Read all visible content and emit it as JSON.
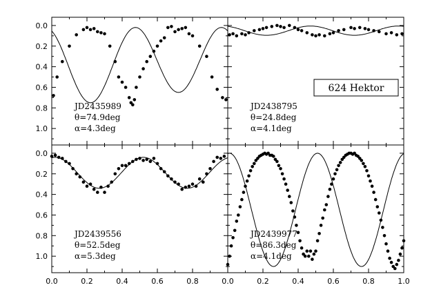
{
  "figure": {
    "object_label": "624 Hektor",
    "x_tick_labels": [
      "0.0",
      "0.2",
      "0.4",
      "0.6",
      "0.8",
      "0.0",
      "0.2",
      "0.4",
      "0.6",
      "0.8",
      "1.0"
    ],
    "y_tick_labels": [
      "0.0",
      "0.2",
      "0.4",
      "0.6",
      "0.8",
      "1.0"
    ]
  },
  "chart_data": [
    {
      "type": "scatter",
      "panel": "top-left",
      "jd": "JD2435989",
      "theta": "θ=74.9deg",
      "alpha": "α=4.3deg",
      "xlim": [
        0,
        1
      ],
      "ylim": [
        1.16,
        -0.08
      ],
      "y_inverted": true,
      "x": [
        0.01,
        0.03,
        0.06,
        0.1,
        0.14,
        0.18,
        0.2,
        0.22,
        0.24,
        0.26,
        0.28,
        0.3,
        0.33,
        0.36,
        0.38,
        0.4,
        0.42,
        0.44,
        0.45,
        0.46,
        0.47,
        0.48,
        0.5,
        0.52,
        0.54,
        0.56,
        0.58,
        0.6,
        0.62,
        0.64,
        0.66,
        0.68,
        0.7,
        0.72,
        0.74,
        0.76,
        0.78,
        0.8,
        0.84,
        0.88,
        0.91,
        0.94,
        0.97,
        0.99
      ],
      "y": [
        0.68,
        0.5,
        0.35,
        0.2,
        0.09,
        0.04,
        0.02,
        0.04,
        0.03,
        0.06,
        0.07,
        0.08,
        0.2,
        0.35,
        0.5,
        0.55,
        0.6,
        0.7,
        0.75,
        0.77,
        0.72,
        0.6,
        0.5,
        0.42,
        0.35,
        0.3,
        0.25,
        0.2,
        0.15,
        0.12,
        0.02,
        0.01,
        0.06,
        0.04,
        0.03,
        0.02,
        0.08,
        0.1,
        0.2,
        0.3,
        0.5,
        0.62,
        0.7,
        0.72
      ],
      "curve": {
        "mean": 0.36,
        "a1": 0.34,
        "a2": 0.05,
        "shift": -0.22
      }
    },
    {
      "type": "scatter",
      "panel": "top-right",
      "jd": "JD2438795",
      "theta": "θ=24.8deg",
      "alpha": "α=4.1deg",
      "xlim": [
        0,
        1
      ],
      "ylim": [
        1.16,
        -0.08
      ],
      "y_inverted": true,
      "x": [
        0.01,
        0.03,
        0.05,
        0.08,
        0.1,
        0.12,
        0.15,
        0.18,
        0.2,
        0.22,
        0.25,
        0.28,
        0.3,
        0.32,
        0.35,
        0.38,
        0.4,
        0.42,
        0.45,
        0.48,
        0.5,
        0.52,
        0.55,
        0.58,
        0.6,
        0.63,
        0.66,
        0.7,
        0.72,
        0.75,
        0.78,
        0.8,
        0.83,
        0.86,
        0.9,
        0.93,
        0.96,
        0.99
      ],
      "y": [
        0.09,
        0.08,
        0.1,
        0.08,
        0.09,
        0.07,
        0.05,
        0.04,
        0.03,
        0.02,
        0.01,
        0.0,
        0.01,
        0.02,
        0.0,
        0.02,
        0.04,
        0.05,
        0.07,
        0.09,
        0.1,
        0.09,
        0.1,
        0.08,
        0.07,
        0.05,
        0.04,
        0.02,
        0.03,
        0.02,
        0.03,
        0.04,
        0.05,
        0.06,
        0.08,
        0.07,
        0.09,
        0.08
      ],
      "curve": {
        "mean": 0.05,
        "a1": 0.045,
        "a2": 0.0,
        "shift": -0.22
      }
    },
    {
      "type": "scatter",
      "panel": "bottom-left",
      "jd": "JD2439556",
      "theta": "θ=52.5deg",
      "alpha": "α=5.3deg",
      "xlim": [
        0,
        1
      ],
      "ylim": [
        1.16,
        -0.08
      ],
      "y_inverted": true,
      "x": [
        0.0,
        0.02,
        0.04,
        0.06,
        0.08,
        0.1,
        0.12,
        0.14,
        0.16,
        0.18,
        0.2,
        0.22,
        0.24,
        0.26,
        0.28,
        0.3,
        0.32,
        0.34,
        0.36,
        0.38,
        0.4,
        0.42,
        0.44,
        0.46,
        0.48,
        0.5,
        0.52,
        0.54,
        0.56,
        0.58,
        0.6,
        0.62,
        0.64,
        0.66,
        0.68,
        0.7,
        0.72,
        0.74,
        0.76,
        0.78,
        0.8,
        0.82,
        0.84,
        0.86,
        0.88,
        0.9,
        0.92,
        0.94,
        0.96,
        0.98
      ],
      "y": [
        0.03,
        0.02,
        0.04,
        0.05,
        0.08,
        0.1,
        0.15,
        0.2,
        0.23,
        0.28,
        0.32,
        0.3,
        0.35,
        0.38,
        0.33,
        0.38,
        0.32,
        0.28,
        0.2,
        0.15,
        0.12,
        0.12,
        0.1,
        0.08,
        0.06,
        0.05,
        0.07,
        0.06,
        0.08,
        0.05,
        0.1,
        0.15,
        0.18,
        0.22,
        0.25,
        0.28,
        0.3,
        0.35,
        0.33,
        0.32,
        0.3,
        0.32,
        0.25,
        0.28,
        0.2,
        0.15,
        0.08,
        0.04,
        0.05,
        0.03
      ],
      "curve": {
        "mean": 0.19,
        "a1": 0.15,
        "a2": 0.0,
        "shift": -0.27
      }
    },
    {
      "type": "scatter",
      "panel": "bottom-right",
      "jd": "JD2439977",
      "theta": "θ=86.3deg",
      "alpha": "α=4.1deg",
      "xlim": [
        0,
        1
      ],
      "ylim": [
        1.16,
        -0.08
      ],
      "y_inverted": true,
      "x": [
        0.0,
        0.01,
        0.02,
        0.03,
        0.04,
        0.05,
        0.06,
        0.07,
        0.08,
        0.09,
        0.1,
        0.11,
        0.12,
        0.13,
        0.14,
        0.15,
        0.16,
        0.17,
        0.18,
        0.19,
        0.2,
        0.21,
        0.22,
        0.23,
        0.24,
        0.25,
        0.26,
        0.27,
        0.28,
        0.29,
        0.3,
        0.31,
        0.32,
        0.33,
        0.34,
        0.35,
        0.36,
        0.37,
        0.38,
        0.39,
        0.4,
        0.41,
        0.42,
        0.43,
        0.44,
        0.45,
        0.46,
        0.47,
        0.48,
        0.49,
        0.5,
        0.51,
        0.52,
        0.53,
        0.54,
        0.55,
        0.56,
        0.57,
        0.58,
        0.59,
        0.6,
        0.61,
        0.62,
        0.63,
        0.64,
        0.65,
        0.66,
        0.67,
        0.68,
        0.69,
        0.7,
        0.71,
        0.72,
        0.73,
        0.74,
        0.75,
        0.76,
        0.77,
        0.78,
        0.79,
        0.8,
        0.81,
        0.82,
        0.83,
        0.84,
        0.85,
        0.86,
        0.87,
        0.88,
        0.89,
        0.9,
        0.91,
        0.92,
        0.93,
        0.94,
        0.95,
        0.96,
        0.97,
        0.98,
        0.99,
        1.0
      ],
      "y": [
        1.08,
        1.0,
        0.9,
        0.82,
        0.75,
        0.66,
        0.6,
        0.52,
        0.45,
        0.38,
        0.32,
        0.27,
        0.22,
        0.17,
        0.13,
        0.1,
        0.07,
        0.05,
        0.03,
        0.02,
        0.01,
        0.0,
        0.01,
        0.0,
        0.02,
        0.02,
        0.03,
        0.06,
        0.08,
        0.12,
        0.15,
        0.2,
        0.25,
        0.3,
        0.36,
        0.42,
        0.48,
        0.56,
        0.62,
        0.7,
        0.77,
        0.85,
        0.92,
        0.98,
        1.0,
        0.95,
        1.0,
        0.95,
        1.03,
        0.98,
        0.95,
        0.85,
        0.78,
        0.7,
        0.63,
        0.55,
        0.5,
        0.42,
        0.35,
        0.3,
        0.25,
        0.2,
        0.16,
        0.12,
        0.09,
        0.06,
        0.04,
        0.02,
        0.01,
        0.0,
        0.0,
        0.01,
        0.0,
        0.02,
        0.03,
        0.05,
        0.07,
        0.1,
        0.13,
        0.17,
        0.22,
        0.27,
        0.32,
        0.38,
        0.45,
        0.52,
        0.58,
        0.65,
        0.72,
        0.8,
        0.88,
        0.95,
        1.02,
        1.06,
        1.1,
        1.12,
        1.08,
        1.04,
        0.98,
        0.92,
        0.85
      ],
      "curve": {
        "mean": 0.55,
        "a1": 0.55,
        "a2": 0.0,
        "shift": -0.26
      }
    }
  ]
}
